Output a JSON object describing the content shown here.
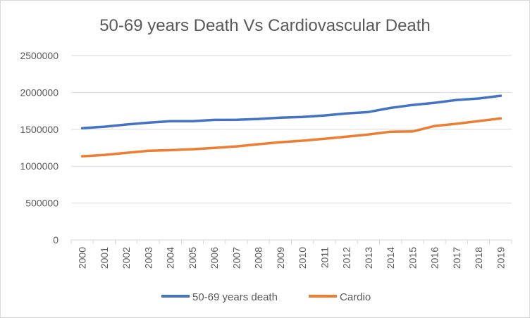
{
  "chart_data": {
    "type": "line",
    "title": "50-69 years Death Vs Cardiovascular Death",
    "xlabel": "",
    "ylabel": "",
    "x": [
      "2000",
      "2001",
      "2002",
      "2003",
      "2004",
      "2005",
      "2006",
      "2007",
      "2008",
      "2009",
      "2010",
      "2011",
      "2012",
      "2013",
      "2014",
      "2015",
      "2016",
      "2017",
      "2018",
      "2019"
    ],
    "ylim": [
      0,
      2500000
    ],
    "yticks": [
      "0",
      "500000",
      "1000000",
      "1500000",
      "2000000",
      "2500000"
    ],
    "grid": true,
    "legend_position": "bottom",
    "series": [
      {
        "name": "50-69 years death",
        "color": "#4472c4",
        "values": [
          1515000,
          1535000,
          1565000,
          1590000,
          1610000,
          1610000,
          1628000,
          1630000,
          1640000,
          1658000,
          1668000,
          1688000,
          1715000,
          1735000,
          1790000,
          1830000,
          1860000,
          1898000,
          1918000,
          1955000
        ]
      },
      {
        "name": "Cardio",
        "color": "#ed7d31",
        "values": [
          1135000,
          1152000,
          1180000,
          1208000,
          1218000,
          1230000,
          1248000,
          1268000,
          1298000,
          1325000,
          1345000,
          1372000,
          1400000,
          1430000,
          1468000,
          1470000,
          1545000,
          1575000,
          1612000,
          1648000
        ]
      }
    ]
  }
}
